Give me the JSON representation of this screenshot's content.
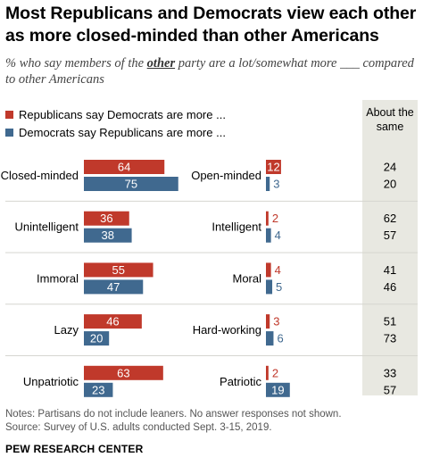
{
  "header": {
    "title": "Most Republicans and Democrats view each other as more closed-minded than other Americans",
    "subtitle_prefix": "% who say members of the ",
    "subtitle_em": "other",
    "subtitle_suffix": " party are a lot/somewhat more ___ compared to other Americans"
  },
  "legend": {
    "rep_label": "Republicans say Democrats are more ...",
    "dem_label": "Democrats say Republicans are more ..."
  },
  "about_header": "About the same",
  "colors": {
    "rep": "#c0392b",
    "dem": "#40698f",
    "about_bg": "#e8e8e1"
  },
  "chart_data": {
    "type": "bar",
    "negative": {
      "categories": [
        "Closed-minded",
        "Unintelligent",
        "Immoral",
        "Lazy",
        "Unpatriotic"
      ],
      "series": [
        {
          "name": "Republicans say Democrats are more ...",
          "values": [
            64,
            36,
            55,
            46,
            63
          ]
        },
        {
          "name": "Democrats say Republicans are more ...",
          "values": [
            75,
            38,
            47,
            20,
            23
          ]
        }
      ]
    },
    "positive": {
      "categories": [
        "Open-minded",
        "Intelligent",
        "Moral",
        "Hard-working",
        "Patriotic"
      ],
      "series": [
        {
          "name": "Republicans say Democrats are more ...",
          "values": [
            12,
            2,
            4,
            3,
            2
          ]
        },
        {
          "name": "Democrats say Republicans are more ...",
          "values": [
            3,
            4,
            5,
            6,
            19
          ]
        }
      ]
    },
    "about_the_same": {
      "series": [
        {
          "name": "Republicans say Democrats are more ...",
          "values": [
            24,
            62,
            41,
            51,
            33
          ]
        },
        {
          "name": "Democrats say Republicans are more ...",
          "values": [
            20,
            57,
            46,
            73,
            57
          ]
        }
      ]
    }
  },
  "notes": {
    "line1": "Notes: Partisans do not include leaners. No answer responses not shown.",
    "line2": "Source: Survey of U.S. adults conducted Sept. 3-15, 2019."
  },
  "brand": "PEW RESEARCH CENTER"
}
